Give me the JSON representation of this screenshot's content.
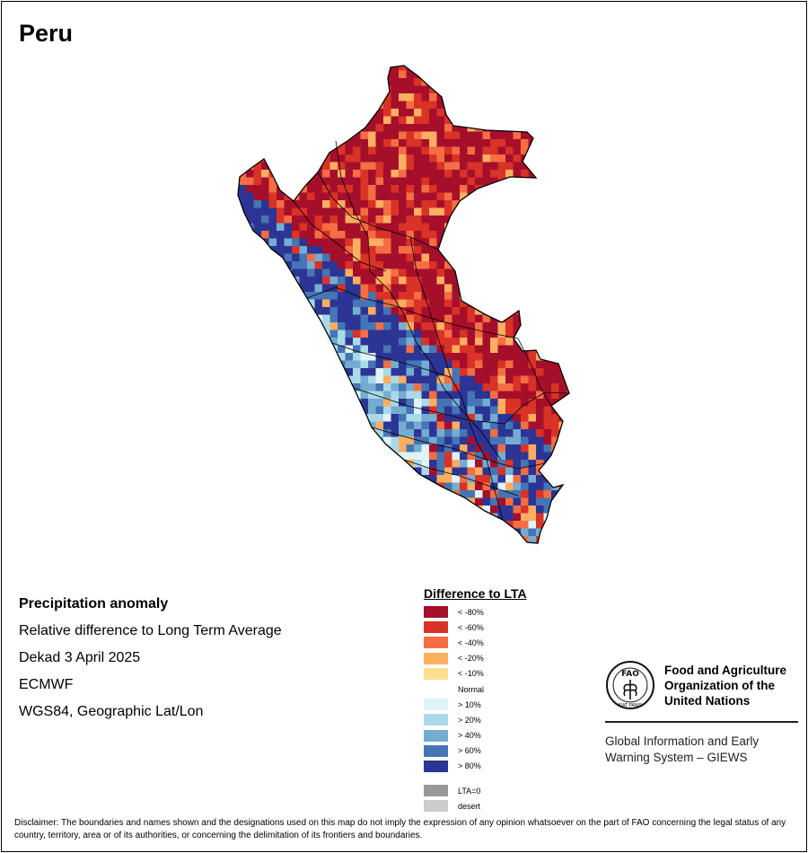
{
  "title": "Peru",
  "meta": {
    "heading": "Precipitation anomaly",
    "line1": "Relative difference to Long Term Average",
    "line2": "Dekad 3 April 2025",
    "line3": "ECMWF",
    "line4": "WGS84, Geographic Lat/Lon"
  },
  "legend": {
    "title": "Difference to LTA",
    "classes": [
      {
        "label": "< -80%",
        "color": "#a50f2b"
      },
      {
        "label": "< -60%",
        "color": "#d93226"
      },
      {
        "label": "< -40%",
        "color": "#f46d43"
      },
      {
        "label": "< -20%",
        "color": "#fdae61"
      },
      {
        "label": "< -10%",
        "color": "#fee090"
      },
      {
        "label": "Normal",
        "color": "#ffffff"
      },
      {
        "label": "> 10%",
        "color": "#e0f3f8"
      },
      {
        "label": "> 20%",
        "color": "#abd9e9"
      },
      {
        "label": "> 40%",
        "color": "#74add1"
      },
      {
        "label": "> 60%",
        "color": "#4575b4"
      },
      {
        "label": "> 80%",
        "color": "#2c3595"
      }
    ],
    "extra": [
      {
        "label": "LTA=0",
        "color": "#999999"
      },
      {
        "label": "desert",
        "color": "#cccccc"
      }
    ]
  },
  "logo": {
    "org_name_lines": [
      "Food and Agriculture",
      "Organization of the",
      "United Nations"
    ],
    "emblem_top": "FAO",
    "emblem_bottom": "FIAT PANIS",
    "system_lines": [
      "Global Information and Early",
      "Warning System – GIEWS"
    ]
  },
  "disclaimer": "Disclaimer: The boundaries and names shown and the designations used on this map do not imply the expression of any opinion whatsoever on the part of FAO concerning the legal status of any country, territory, area or of its authorities, or concerning the delimitation of its frontiers and boundaries."
}
